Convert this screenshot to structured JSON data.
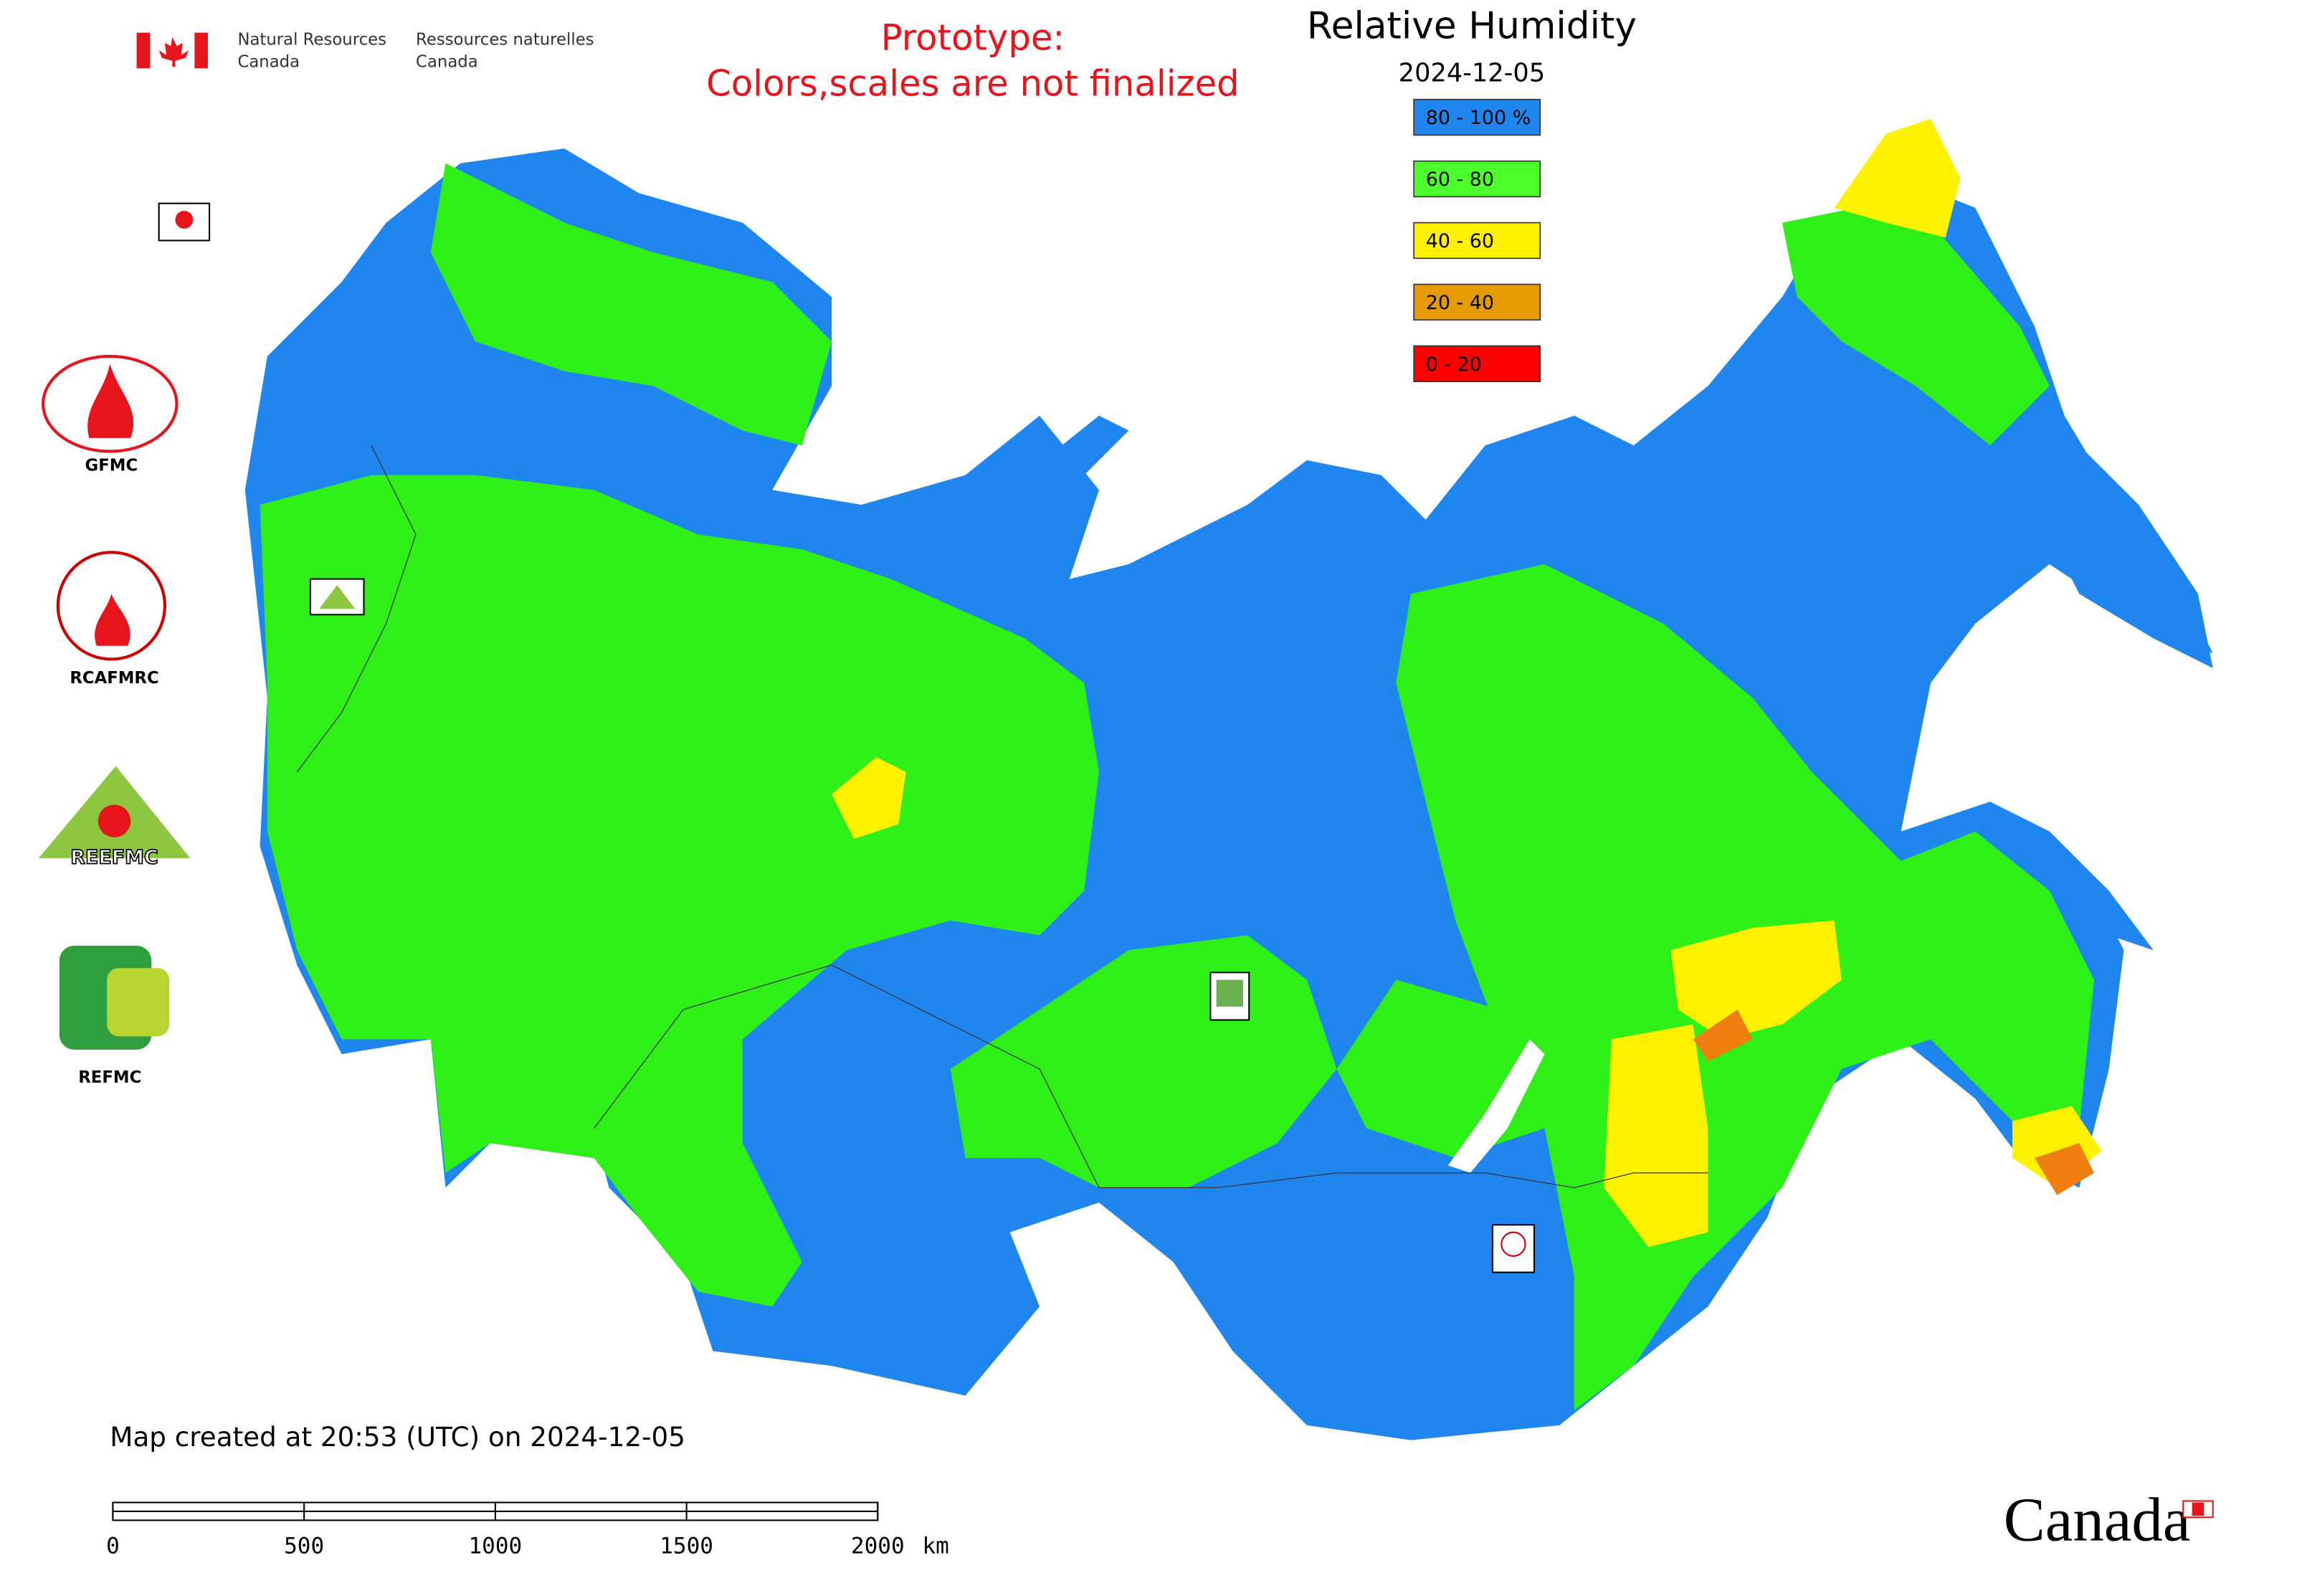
{
  "header": {
    "agency_en_1": "Natural Resources",
    "agency_en_2": "Canada",
    "agency_fr_1": "Ressources naturelles",
    "agency_fr_2": "Canada",
    "prototype_1": "Prototype:",
    "prototype_2": "Colors,scales are not finalized",
    "title": "Relative Humidity",
    "date": "2024-12-05"
  },
  "legend": {
    "items": [
      {
        "label": "80 - 100 %",
        "color": "#1f86f0"
      },
      {
        "label": "60 - 80",
        "color": "#4dff2b"
      },
      {
        "label": "40 - 60",
        "color": "#fff200"
      },
      {
        "label": "20 - 40",
        "color": "#e59a00"
      },
      {
        "label": "0 - 20",
        "color": "#ff0000"
      }
    ]
  },
  "logos": [
    "GFMC",
    "RCAFMRC",
    "REEFMC",
    "REFMC"
  ],
  "footer": {
    "created": "Map created at 20:53 (UTC) on 2024-12-05",
    "wordmark": "Canada"
  },
  "scale_bar": {
    "ticks": [
      0,
      500,
      1000,
      1500,
      2000
    ],
    "range": [
      0,
      2000
    ],
    "unit": "km"
  }
}
